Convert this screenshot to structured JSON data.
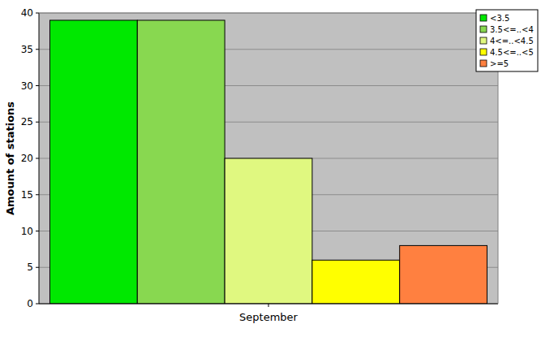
{
  "chart_data": {
    "type": "bar",
    "categories": [
      "September"
    ],
    "ylabel": "Amount of stations",
    "series": [
      {
        "name": "<3.5",
        "color": "#00e800",
        "values": [
          39
        ]
      },
      {
        "name": "3.5<=..<4",
        "color": "#88d850",
        "values": [
          39
        ]
      },
      {
        "name": "4<=..<4.5",
        "color": "#e0f880",
        "values": [
          20
        ]
      },
      {
        "name": "4.5<=..<5",
        "color": "#ffff00",
        "values": [
          6
        ]
      },
      {
        "name": ">=5",
        "color": "#ff8040",
        "values": [
          8
        ]
      }
    ],
    "ylim": [
      0,
      40
    ],
    "yticks": [
      0,
      5,
      10,
      15,
      20,
      25,
      30,
      35,
      40
    ],
    "grid": true,
    "legend": "top-right"
  }
}
